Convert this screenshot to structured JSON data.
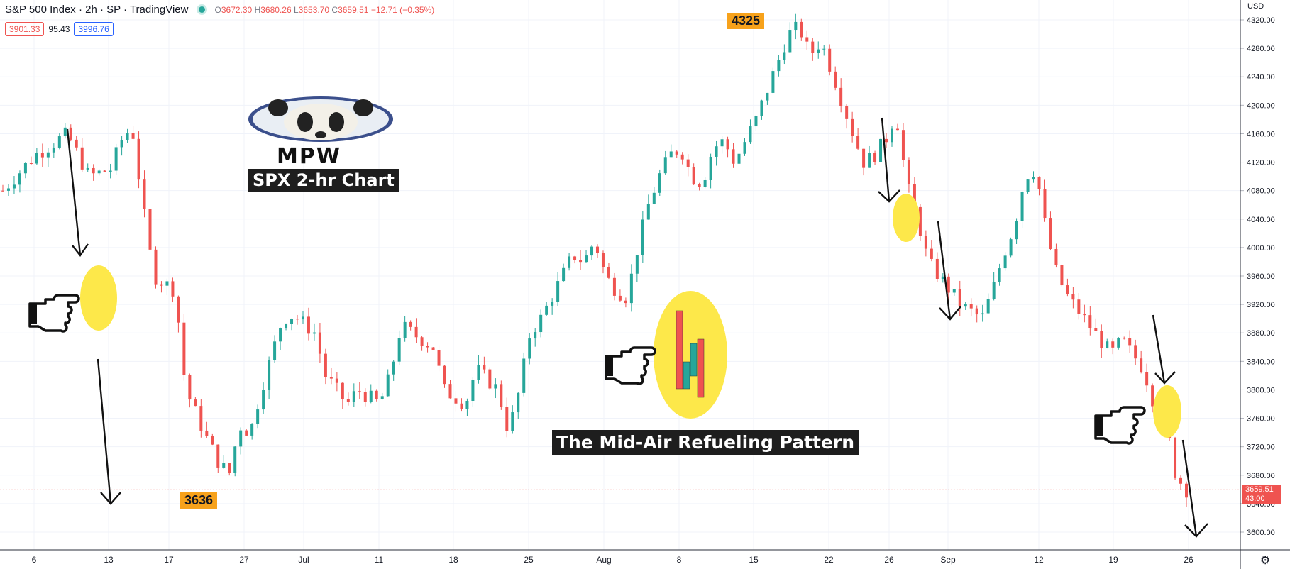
{
  "header": {
    "symbol": "S&P 500 Index · 2h · SP · TradingView",
    "ohlc_o_label": "O",
    "ohlc_o": "3672.30",
    "ohlc_h_label": "H",
    "ohlc_h": "3680.26",
    "ohlc_l_label": "L",
    "ohlc_l": "3653.70",
    "ohlc_c_label": "C",
    "ohlc_c": "3659.51",
    "change": "−12.71 (−0.35%)",
    "bid": "3901.33",
    "spread": "95.43",
    "ask": "3996.76"
  },
  "annotations": {
    "logo_text": "MPW",
    "chart_caption": "SPX 2-hr Chart",
    "pattern_caption": "The Mid-Air Refueling Pattern",
    "high_tag": "4325",
    "low_tag": "3636"
  },
  "price_axis": {
    "currency": "USD",
    "last_price": "3659.51",
    "countdown": "43:00"
  },
  "colors": {
    "up": "#26a69a",
    "down": "#ef5350",
    "highlight": "#fde84a",
    "tag": "#f7a21b",
    "caption_bg": "#1e1e1e"
  },
  "chart_data": {
    "type": "candlestick",
    "ylim": [
      3580,
      4330
    ],
    "y_ticks": [
      3600,
      3640,
      3680,
      3720,
      3760,
      3800,
      3840,
      3880,
      3920,
      3960,
      4000,
      4040,
      4080,
      4120,
      4160,
      4200,
      4240,
      4280,
      4320
    ],
    "y_tick_labels": [
      "3600.00",
      "3640.00",
      "3680.00",
      "3720.00",
      "3760.00",
      "3800.00",
      "3840.00",
      "3880.00",
      "3920.00",
      "3960.00",
      "4000.00",
      "4040.00",
      "4080.00",
      "4120.00",
      "4160.00",
      "4200.00",
      "4240.00",
      "4280.00",
      "4320.00"
    ],
    "x_ticks": [
      "6",
      "13",
      "17",
      "27",
      "Jul",
      "11",
      "18",
      "25",
      "Aug",
      "8",
      "15",
      "22",
      "26",
      "Sep",
      "12",
      "19",
      "26"
    ],
    "last_price_line": 3659.51,
    "path": [
      [
        0,
        4080
      ],
      [
        3,
        4130
      ],
      [
        6,
        4160
      ],
      [
        8,
        4100
      ],
      [
        10,
        4110
      ],
      [
        11,
        4150
      ],
      [
        12,
        4170
      ],
      [
        13,
        4060
      ],
      [
        14,
        3960
      ],
      [
        16,
        3940
      ],
      [
        17,
        3800
      ],
      [
        19,
        3730
      ],
      [
        20,
        3700
      ],
      [
        21,
        3680
      ],
      [
        22,
        3750
      ],
      [
        23,
        3740
      ],
      [
        24,
        3800
      ],
      [
        26,
        3900
      ],
      [
        27,
        3905
      ],
      [
        29,
        3880
      ],
      [
        30,
        3820
      ],
      [
        32,
        3780
      ],
      [
        33,
        3800
      ],
      [
        35,
        3780
      ],
      [
        36,
        3820
      ],
      [
        37,
        3890
      ],
      [
        38,
        3880
      ],
      [
        40,
        3860
      ],
      [
        41,
        3800
      ],
      [
        43,
        3780
      ],
      [
        44,
        3830
      ],
      [
        46,
        3800
      ],
      [
        47,
        3740
      ],
      [
        48,
        3800
      ],
      [
        49,
        3880
      ],
      [
        50,
        3900
      ],
      [
        52,
        3960
      ],
      [
        53,
        3990
      ],
      [
        54,
        3980
      ],
      [
        55,
        4010
      ],
      [
        56,
        3960
      ],
      [
        57,
        3940
      ],
      [
        58,
        3930
      ],
      [
        59,
        4000
      ],
      [
        60,
        4060
      ],
      [
        61,
        4100
      ],
      [
        62,
        4130
      ],
      [
        63,
        4140
      ],
      [
        64,
        4100
      ],
      [
        65,
        4090
      ],
      [
        66,
        4140
      ],
      [
        67,
        4150
      ],
      [
        68,
        4120
      ],
      [
        70,
        4180
      ],
      [
        71,
        4220
      ],
      [
        72,
        4260
      ],
      [
        73,
        4300
      ],
      [
        74,
        4310
      ],
      [
        75,
        4270
      ],
      [
        76,
        4290
      ],
      [
        77,
        4250
      ],
      [
        79,
        4160
      ],
      [
        80,
        4120
      ],
      [
        81,
        4130
      ],
      [
        82,
        4150
      ],
      [
        83,
        4190
      ],
      [
        84,
        4090
      ],
      [
        85,
        4040
      ],
      [
        86,
        3980
      ],
      [
        88,
        3940
      ],
      [
        89,
        3920
      ],
      [
        91,
        3900
      ],
      [
        92,
        3940
      ],
      [
        93,
        3990
      ],
      [
        94,
        4030
      ],
      [
        95,
        4100
      ],
      [
        96,
        4110
      ],
      [
        97,
        4020
      ],
      [
        98,
        3960
      ],
      [
        99,
        3930
      ],
      [
        101,
        3890
      ],
      [
        102,
        3870
      ],
      [
        103,
        3850
      ],
      [
        104,
        3870
      ],
      [
        105,
        3850
      ],
      [
        106,
        3830
      ],
      [
        107,
        3780
      ],
      [
        108,
        3760
      ],
      [
        109,
        3680
      ],
      [
        110,
        3659.51
      ]
    ]
  }
}
